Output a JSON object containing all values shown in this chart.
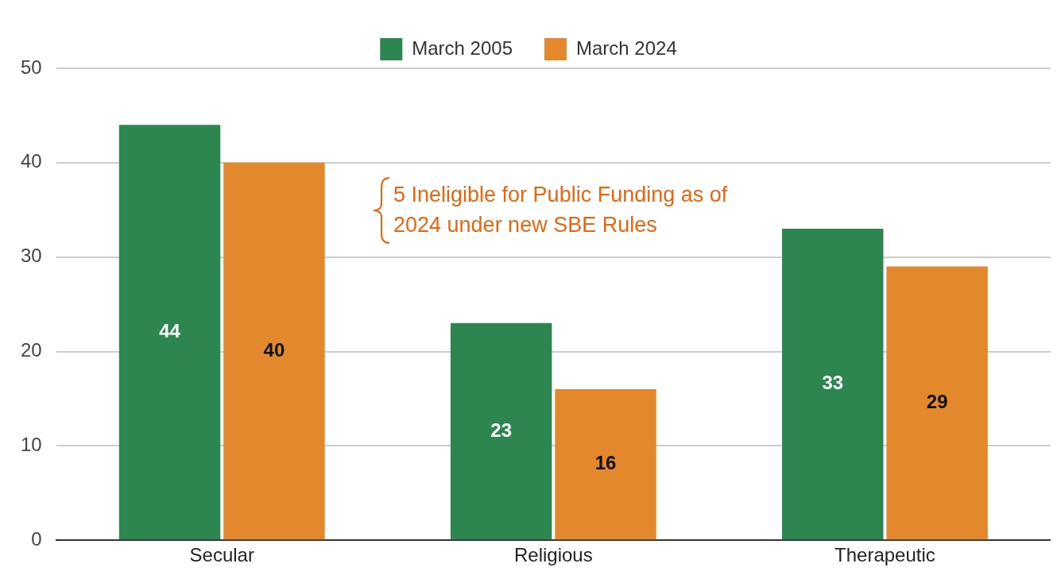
{
  "chart_data": {
    "type": "bar",
    "categories": [
      "Secular",
      "Religious",
      "Therapeutic"
    ],
    "series": [
      {
        "name": "March 2005",
        "color": "#2d8650",
        "values": [
          44,
          23,
          33
        ]
      },
      {
        "name": "March 2024",
        "color": "#e3882d",
        "values": [
          40,
          16,
          29
        ]
      }
    ],
    "ylim": [
      0,
      50
    ],
    "yticks": [
      0,
      10,
      20,
      30,
      40,
      50
    ],
    "grid": "y",
    "legend": "top",
    "data_labels": true,
    "annotations": [
      "5 Ineligible for Public Funding as of 2024 under new SBE Rules"
    ]
  }
}
